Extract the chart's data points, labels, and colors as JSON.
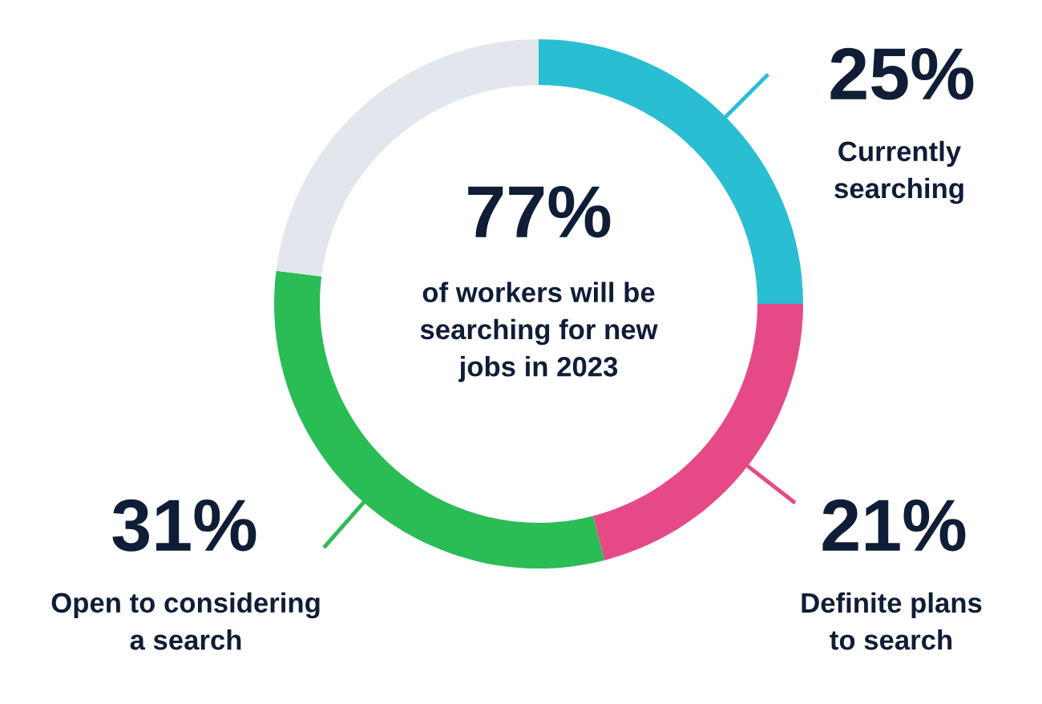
{
  "chart_data": {
    "type": "donut",
    "categories": [
      "Currently\nsearching",
      "Definite plans\nto search",
      "Open to considering\na search",
      null
    ],
    "values": [
      25,
      21,
      31,
      23
    ],
    "value_labels": [
      "25%",
      "21%",
      "31%",
      null
    ],
    "colors": [
      "#29bed2",
      "#e54a86",
      "#2abc55",
      "#e3e6ec"
    ],
    "annotations": [
      "77%",
      "of workers will be\nsearching for new\njobs in 2023"
    ]
  }
}
